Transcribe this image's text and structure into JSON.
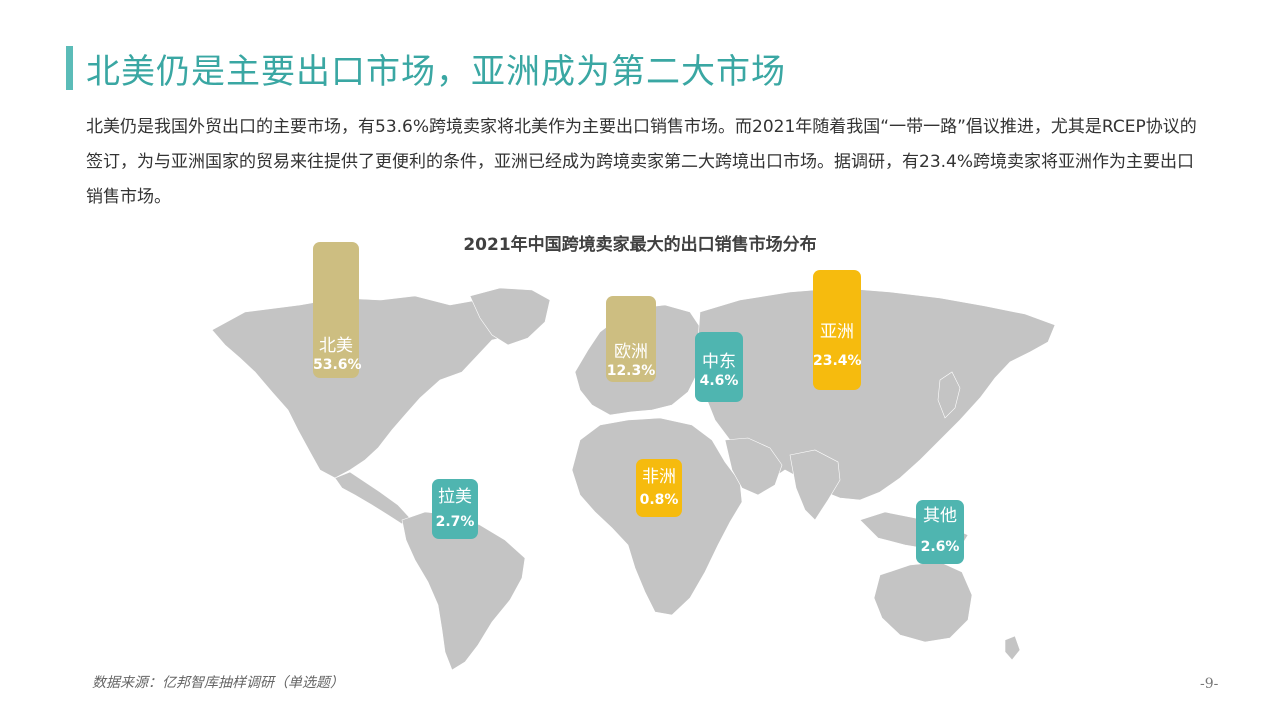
{
  "header": {
    "title": "北美仍是主要出口市场，亚洲成为第二大市场",
    "intro": "北美仍是我国外贸出口的主要市场，有53.6%跨境卖家将北美作为主要出口销售市场。而2021年随着我国“一带一路”倡议推进，尤其是RCEP协议的签订，为与亚洲国家的贸易来往提供了更便利的条件，亚洲已经成为跨境卖家第二大跨境出口市场。据调研，有23.4%跨境卖家将亚洲作为主要出口销售市场。"
  },
  "chart_data": {
    "type": "bar",
    "title": "2021年中国跨境卖家最大的出口销售市场分布",
    "categories": [
      "北美",
      "欧洲",
      "中东",
      "亚洲",
      "拉美",
      "非洲",
      "其他"
    ],
    "values": [
      53.6,
      12.3,
      4.6,
      23.4,
      2.7,
      0.8,
      2.6
    ],
    "value_labels": [
      "53.6%",
      "12.3%",
      "4.6%",
      "23.4%",
      "2.7%",
      "0.8%",
      "2.6%"
    ],
    "unit": "%",
    "colors": [
      "#cdbe81",
      "#cdbe81",
      "#4fb5b0",
      "#f6bb0e",
      "#4fb5b0",
      "#f6bb0e",
      "#4fb5b0"
    ],
    "background": "world map"
  },
  "footer": {
    "source": "数据来源：亿邦智库抽样调研（单选题）",
    "page": "-9-"
  }
}
